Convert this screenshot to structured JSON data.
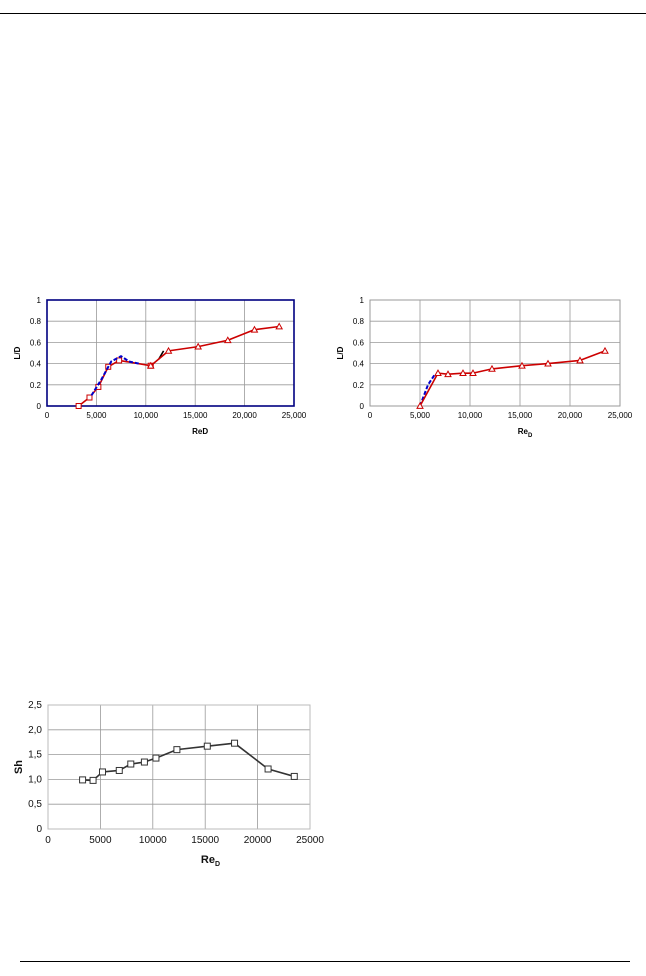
{
  "chart_data": [
    {
      "id": "chart1",
      "type": "line",
      "title": "",
      "xlabel": "ReD",
      "ylabel": "L/D",
      "xlim": [
        0,
        25000
      ],
      "ylim": [
        0,
        1
      ],
      "xticks": [
        0,
        5000,
        10000,
        15000,
        20000,
        25000
      ],
      "xtick_labels": [
        "0",
        "5,000",
        "10,000",
        "15,000",
        "20,000",
        "25,000"
      ],
      "yticks": [
        0,
        0.2,
        0.4,
        0.6,
        0.8,
        1
      ],
      "ytick_labels": [
        "0",
        "0.2",
        "0.4",
        "0.6",
        "0.8",
        "1"
      ],
      "grid": true,
      "frame_color": "#000080",
      "series": [
        {
          "color": "#cc0000",
          "marker": "square",
          "x": [
            3200,
            4300,
            5200,
            6200,
            7300,
            10500
          ],
          "y": [
            0,
            0.08,
            0.18,
            0.37,
            0.43,
            0.38
          ]
        },
        {
          "color": "#0000cc",
          "marker": "none",
          "dashed": true,
          "x": [
            4500,
            5500,
            6500,
            7500,
            8300,
            9300
          ],
          "y": [
            0.1,
            0.25,
            0.42,
            0.47,
            0.42,
            0.4
          ]
        },
        {
          "color": "#000000",
          "marker": "none",
          "x": [
            11300,
            11800
          ],
          "y": [
            0.44,
            0.52
          ]
        },
        {
          "color": "#cc0000",
          "marker": "triangle",
          "x": [
            10500,
            12300,
            15300,
            18300,
            21000,
            23500
          ],
          "y": [
            0.38,
            0.52,
            0.56,
            0.62,
            0.72,
            0.75
          ]
        }
      ]
    },
    {
      "id": "chart2",
      "type": "line",
      "title": "",
      "xlabel": "ReD",
      "ylabel": "L/D",
      "xlim": [
        0,
        25000
      ],
      "ylim": [
        0,
        1
      ],
      "xticks": [
        0,
        5000,
        10000,
        15000,
        20000,
        25000
      ],
      "xtick_labels": [
        "0",
        "5,000",
        "10,000",
        "15,000",
        "20,000",
        "25,000"
      ],
      "yticks": [
        0,
        0.2,
        0.4,
        0.6,
        0.8,
        1
      ],
      "ytick_labels": [
        "0",
        "0.2",
        "0.4",
        "0.6",
        "0.8",
        "1"
      ],
      "grid": true,
      "frame_color": "#999999",
      "series": [
        {
          "color": "#0000cc",
          "marker": "none",
          "dashed": true,
          "x": [
            5000,
            5800,
            6500
          ],
          "y": [
            0,
            0.2,
            0.3
          ]
        },
        {
          "color": "#cc0000",
          "marker": "triangle",
          "x": [
            5000,
            6800,
            7800,
            9300,
            10300,
            12200,
            15200,
            17800,
            21000,
            23500
          ],
          "y": [
            0,
            0.31,
            0.3,
            0.31,
            0.31,
            0.35,
            0.38,
            0.4,
            0.43,
            0.52
          ]
        }
      ]
    },
    {
      "id": "chart3",
      "type": "line",
      "title": "",
      "xlabel": "ReD",
      "ylabel": "Sh",
      "xlim": [
        0,
        25000
      ],
      "ylim": [
        0,
        2.5
      ],
      "xticks": [
        0,
        5000,
        10000,
        15000,
        20000,
        25000
      ],
      "xtick_labels": [
        "0",
        "5000",
        "10000",
        "15000",
        "20000",
        "25000"
      ],
      "yticks": [
        0,
        0.5,
        1,
        1.5,
        2,
        2.5
      ],
      "ytick_labels": [
        "0",
        "0,5",
        "1,0",
        "1,5",
        "2,0",
        "2,5"
      ],
      "grid": true,
      "frame_color": "#bbbbbb",
      "series": [
        {
          "color": "#333333",
          "marker": "square",
          "x": [
            3300,
            4300,
            5200,
            6800,
            7900,
            9200,
            10300,
            12300,
            15200,
            17800,
            21000,
            23500
          ],
          "y": [
            0.99,
            0.98,
            1.15,
            1.18,
            1.31,
            1.35,
            1.43,
            1.6,
            1.67,
            1.73,
            1.21,
            1.06
          ]
        }
      ]
    }
  ]
}
